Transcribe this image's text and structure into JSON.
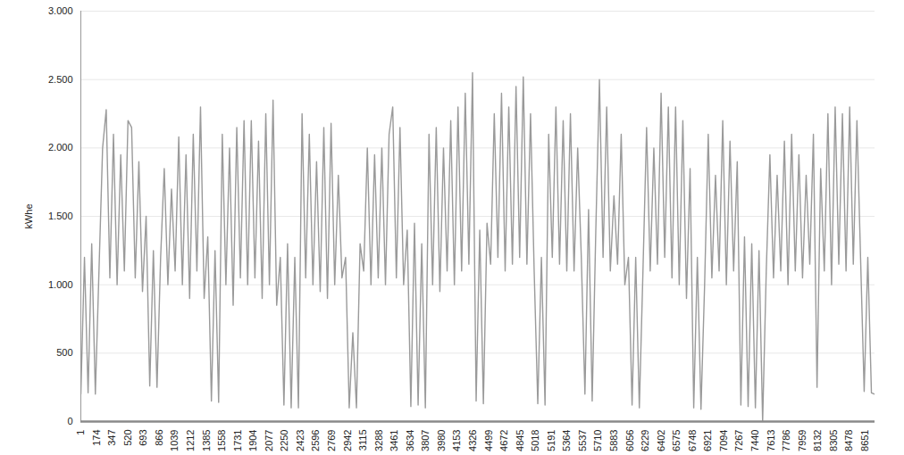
{
  "chart_data": {
    "type": "line",
    "y_label": "kWhe",
    "color": "#9a9a9a",
    "grid": true,
    "xlim": [
      1,
      8760
    ],
    "xticks": [
      1,
      174,
      347,
      520,
      693,
      866,
      1039,
      1212,
      1385,
      1558,
      1731,
      1904,
      2077,
      2250,
      2423,
      2596,
      2769,
      2942,
      3115,
      3288,
      3461,
      3634,
      3807,
      3980,
      4153,
      4326,
      4499,
      4672,
      4845,
      5018,
      5191,
      5364,
      5537,
      5710,
      5883,
      6056,
      6229,
      6402,
      6575,
      6748,
      6921,
      7094,
      7267,
      7440,
      7613,
      7786,
      7959,
      8132,
      8305,
      8478,
      8651
    ],
    "ylim": [
      0,
      3000
    ],
    "yticks": [
      0,
      500,
      {
        "value": 1000,
        "label": "1.000"
      },
      {
        "value": 1500,
        "label": "1.500"
      },
      {
        "value": 2000,
        "label": "2.000"
      },
      {
        "value": 2500,
        "label": "2.500"
      },
      {
        "value": 3000,
        "label": "3.000"
      }
    ],
    "x": [
      1,
      41,
      81,
      121,
      161,
      201,
      241,
      281,
      321,
      361,
      401,
      441,
      481,
      521,
      561,
      601,
      641,
      681,
      721,
      761,
      801,
      841,
      881,
      921,
      961,
      1001,
      1041,
      1081,
      1121,
      1161,
      1201,
      1241,
      1281,
      1321,
      1361,
      1401,
      1441,
      1481,
      1521,
      1561,
      1601,
      1641,
      1681,
      1721,
      1761,
      1801,
      1841,
      1881,
      1921,
      1961,
      2001,
      2041,
      2081,
      2121,
      2161,
      2201,
      2241,
      2281,
      2321,
      2361,
      2401,
      2441,
      2481,
      2521,
      2561,
      2601,
      2641,
      2681,
      2721,
      2761,
      2801,
      2841,
      2881,
      2921,
      2961,
      3001,
      3041,
      3081,
      3121,
      3161,
      3201,
      3241,
      3281,
      3321,
      3361,
      3401,
      3441,
      3481,
      3521,
      3561,
      3601,
      3641,
      3681,
      3721,
      3761,
      3801,
      3841,
      3881,
      3921,
      3961,
      4001,
      4041,
      4081,
      4121,
      4161,
      4201,
      4241,
      4281,
      4321,
      4361,
      4401,
      4441,
      4481,
      4521,
      4561,
      4601,
      4641,
      4681,
      4721,
      4761,
      4801,
      4841,
      4881,
      4921,
      4961,
      5001,
      5041,
      5081,
      5121,
      5161,
      5201,
      5241,
      5281,
      5321,
      5361,
      5401,
      5441,
      5481,
      5521,
      5561,
      5601,
      5641,
      5681,
      5721,
      5761,
      5801,
      5841,
      5881,
      5921,
      5961,
      6001,
      6041,
      6081,
      6121,
      6161,
      6201,
      6241,
      6281,
      6321,
      6361,
      6401,
      6441,
      6481,
      6521,
      6561,
      6601,
      6641,
      6681,
      6721,
      6761,
      6801,
      6841,
      6881,
      6921,
      6961,
      7001,
      7041,
      7081,
      7121,
      7161,
      7201,
      7241,
      7281,
      7321,
      7361,
      7401,
      7441,
      7481,
      7521,
      7561,
      7601,
      7641,
      7681,
      7721,
      7761,
      7801,
      7841,
      7881,
      7921,
      7961,
      8001,
      8041,
      8081,
      8121,
      8161,
      8201,
      8241,
      8281,
      8321,
      8361,
      8401,
      8441,
      8481,
      8521,
      8561,
      8601,
      8641,
      8681,
      8721,
      8760
    ],
    "values": [
      200,
      1200,
      210,
      1300,
      200,
      1100,
      2000,
      2280,
      1050,
      2100,
      1000,
      1950,
      1100,
      2200,
      2150,
      1050,
      1900,
      950,
      1500,
      260,
      1250,
      250,
      1200,
      1850,
      1000,
      1700,
      1100,
      2080,
      1000,
      1950,
      900,
      2100,
      1100,
      2300,
      900,
      1350,
      150,
      1250,
      140,
      2100,
      1000,
      2000,
      850,
      2150,
      1050,
      2200,
      1000,
      2200,
      1050,
      2050,
      900,
      2250,
      1000,
      2350,
      850,
      1200,
      120,
      1300,
      100,
      1200,
      100,
      2250,
      1050,
      2100,
      1000,
      1900,
      950,
      2150,
      900,
      2180,
      1000,
      1800,
      1050,
      1200,
      100,
      650,
      100,
      1300,
      1100,
      2000,
      1000,
      1950,
      1050,
      2000,
      1000,
      2100,
      2300,
      1050,
      2150,
      1000,
      1400,
      110,
      1450,
      120,
      1300,
      100,
      2100,
      1000,
      2150,
      950,
      2000,
      1100,
      2200,
      1000,
      2300,
      1100,
      2400,
      1150,
      2550,
      150,
      1400,
      130,
      1450,
      1150,
      2250,
      1200,
      2400,
      1100,
      2300,
      1150,
      2450,
      1200,
      2520,
      1150,
      2250,
      1100,
      130,
      1200,
      120,
      2100,
      1200,
      2300,
      1150,
      2200,
      1100,
      2250,
      1100,
      2000,
      1200,
      200,
      1550,
      150,
      1400,
      2500,
      1200,
      2300,
      1100,
      1650,
      1150,
      2100,
      1000,
      1200,
      120,
      1200,
      100,
      1100,
      2150,
      1100,
      2000,
      1150,
      2400,
      1200,
      2300,
      1050,
      2300,
      1000,
      2200,
      900,
      1850,
      100,
      1200,
      90,
      1000,
      2100,
      1050,
      1800,
      1100,
      2200,
      1000,
      2050,
      1100,
      1900,
      120,
      1350,
      110,
      1300,
      100,
      1250,
      0,
      1100,
      1950,
      1050,
      1800,
      1100,
      2050,
      1000,
      2100,
      1100,
      1950,
      1050,
      1800,
      1150,
      2100,
      250,
      1850,
      1100,
      2250,
      1000,
      2300,
      1150,
      2250,
      1100,
      2300,
      1150,
      2200,
      1200,
      220,
      1200,
      210,
      200
    ]
  }
}
